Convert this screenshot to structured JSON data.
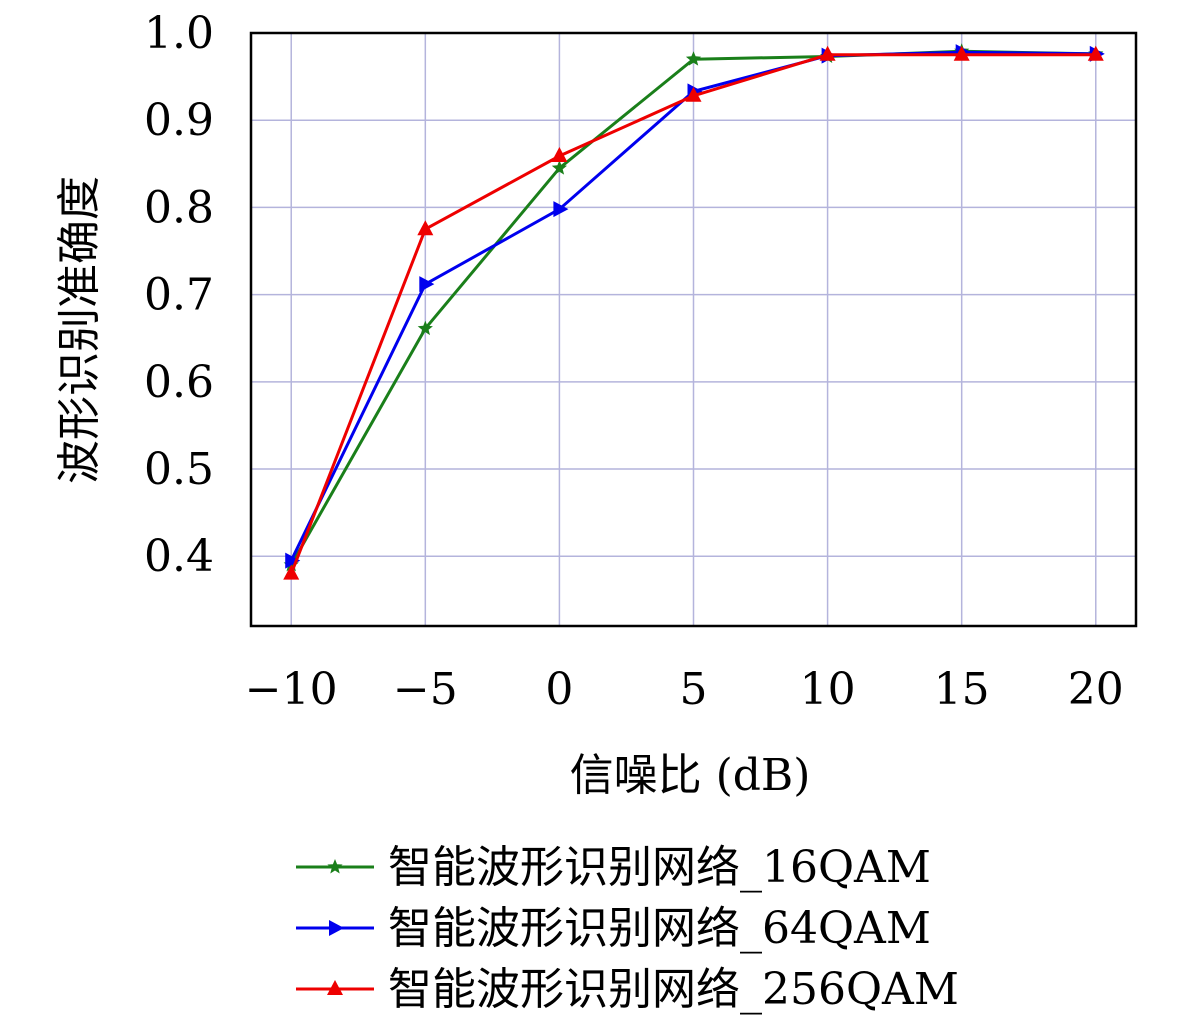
{
  "chart_data": {
    "type": "line",
    "xlabel": "信噪比 (dB)",
    "ylabel": "波形识别准确度",
    "x": [
      -10,
      -5,
      0,
      5,
      10,
      15,
      20
    ],
    "x_tick_labels": [
      "−10",
      "−5",
      "0",
      "5",
      "10",
      "15",
      "20"
    ],
    "y_ticks": [
      0.4,
      0.5,
      0.6,
      0.7,
      0.8,
      0.9,
      1.0
    ],
    "y_tick_labels": [
      "0.4",
      "0.5",
      "0.6",
      "0.7",
      "0.8",
      "0.9",
      "1.0"
    ],
    "xlim": [
      -11.5,
      21.5
    ],
    "ylim": [
      0.32,
      1.0
    ],
    "grid": true,
    "legend_position": "bottom-center",
    "series": [
      {
        "name": "智能波形识别网络_16QAM",
        "color": "#1a7f1a",
        "marker": "star",
        "values": [
          0.39,
          0.661,
          0.845,
          0.97,
          0.973,
          0.979,
          0.976
        ]
      },
      {
        "name": "智能波形识别网络_64QAM",
        "color": "#0000ee",
        "marker": "triangle-right",
        "values": [
          0.395,
          0.712,
          0.798,
          0.933,
          0.974,
          0.978,
          0.976
        ]
      },
      {
        "name": "智能波形识别网络_256QAM",
        "color": "#ee0000",
        "marker": "triangle-up",
        "values": [
          0.38,
          0.775,
          0.859,
          0.928,
          0.975,
          0.975,
          0.975
        ]
      }
    ]
  }
}
